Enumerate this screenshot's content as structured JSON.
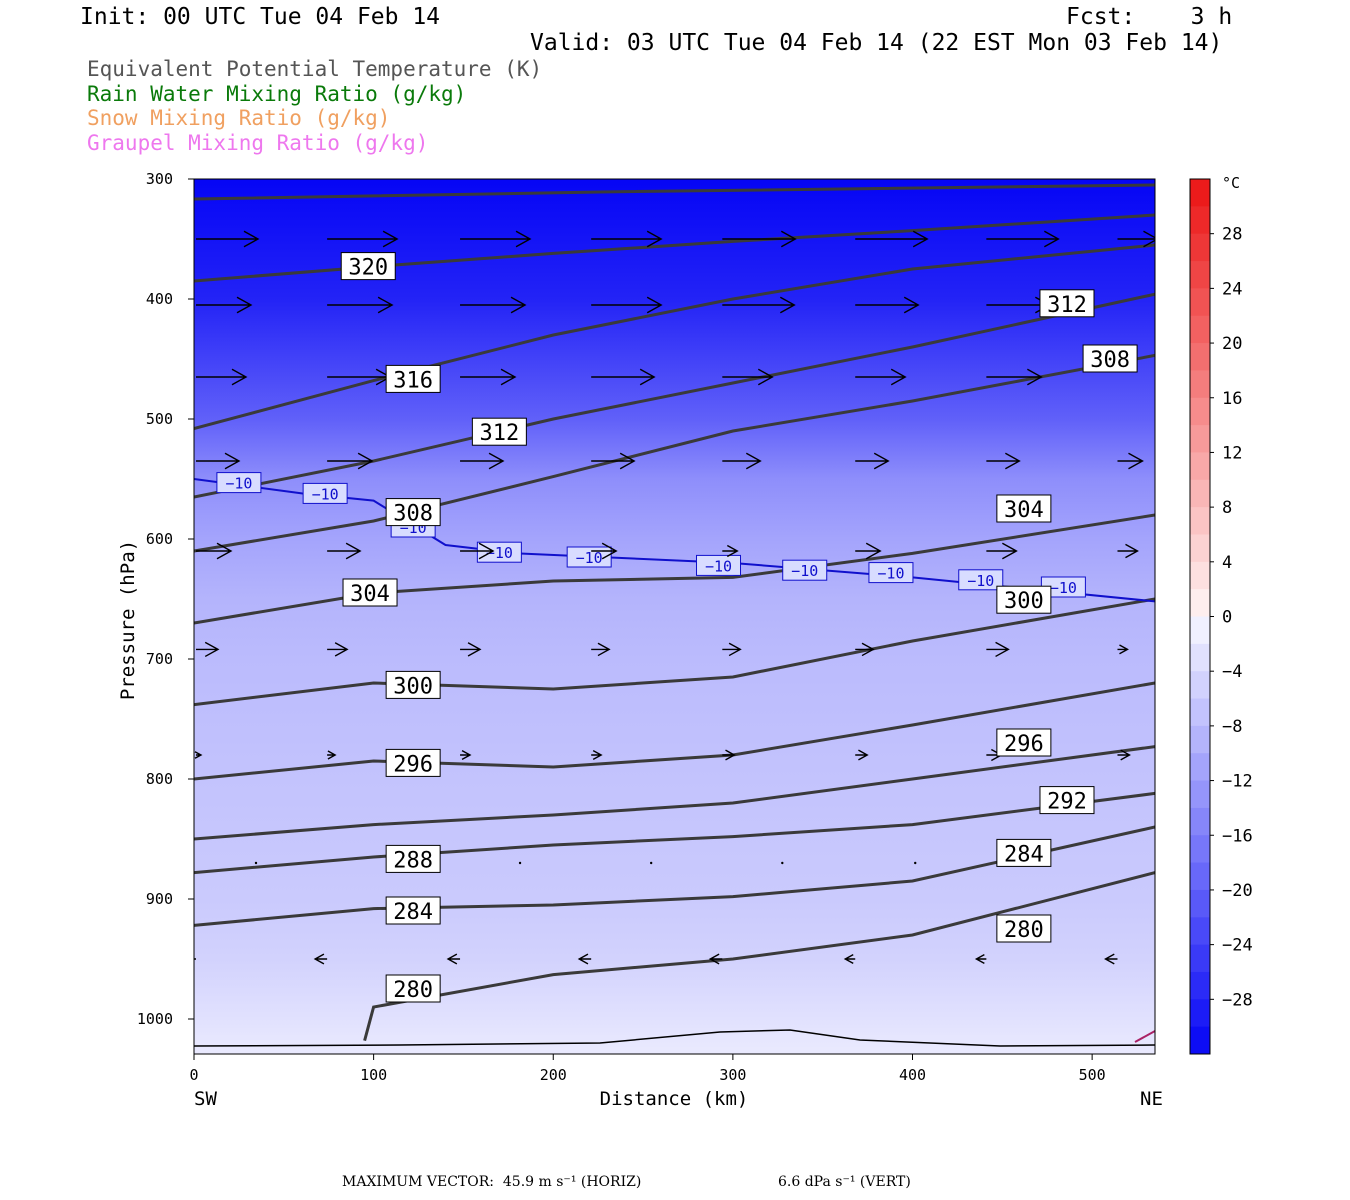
{
  "header": {
    "init": "Init: 00 UTC Tue 04 Feb 14",
    "fcst": "Fcst:    3 h",
    "valid": "Valid: 03 UTC Tue 04 Feb 14 (22 EST Mon 03 Feb 14)"
  },
  "fields": [
    {
      "label": "Equivalent Potential Temperature (K)",
      "color": "#555555"
    },
    {
      "label": "Rain Water Mixing Ratio (g/kg)",
      "color": "#0a7a0a"
    },
    {
      "label": "Snow Mixing Ratio (g/kg)",
      "color": "#f0a060"
    },
    {
      "label": "Graupel Mixing Ratio (g/kg)",
      "color": "#ee77ee"
    }
  ],
  "footer": {
    "max_vector_label": "MAXIMUM VECTOR:",
    "horiz": "45.9 m s⁻¹ (HORIZ)",
    "vert": "6.6 dPa s⁻¹ (VERT)"
  },
  "chart_data": {
    "type": "heatmap",
    "xlabel": "Distance (km)",
    "ylabel": "Pressure (hPa)",
    "xlim": [
      0,
      535
    ],
    "ylim": [
      1025,
      300
    ],
    "x_ticks": [
      0,
      100,
      200,
      300,
      400,
      500
    ],
    "y_ticks": [
      300,
      400,
      500,
      600,
      700,
      800,
      900,
      1000
    ],
    "x_left_label": "SW",
    "x_right_label": "NE",
    "colorbar": {
      "unit": "°C",
      "tick_labels": [
        28,
        24,
        20,
        16,
        12,
        8,
        4,
        0,
        -4,
        -8,
        -12,
        -16,
        -20,
        -24,
        -28
      ],
      "range": [
        -32,
        32
      ],
      "step": 2
    },
    "temperature_fill_levels": [
      {
        "p": 300,
        "t": -32
      },
      {
        "p": 350,
        "t": -30
      },
      {
        "p": 400,
        "t": -28
      },
      {
        "p": 450,
        "t": -24
      },
      {
        "p": 500,
        "t": -20
      },
      {
        "p": 550,
        "t": -14
      },
      {
        "p": 600,
        "t": -11
      },
      {
        "p": 650,
        "t": -9
      },
      {
        "p": 700,
        "t": -8
      },
      {
        "p": 800,
        "t": -7
      },
      {
        "p": 900,
        "t": -6
      },
      {
        "p": 950,
        "t": -5
      },
      {
        "p": 1000,
        "t": -3
      },
      {
        "p": 1025,
        "t": -2
      }
    ],
    "theta_e_contours": [
      {
        "label": "320",
        "points": [
          [
            0,
            385
          ],
          [
            100,
            373
          ],
          [
            200,
            362
          ],
          [
            300,
            352
          ],
          [
            400,
            343
          ],
          [
            535,
            330
          ]
        ]
      },
      {
        "label": "316",
        "points": [
          [
            0,
            508
          ],
          [
            100,
            468
          ],
          [
            200,
            430
          ],
          [
            300,
            400
          ],
          [
            400,
            375
          ],
          [
            535,
            355
          ]
        ]
      },
      {
        "label": "312",
        "points": [
          [
            0,
            565
          ],
          [
            100,
            535
          ],
          [
            200,
            500
          ],
          [
            300,
            470
          ],
          [
            400,
            440
          ],
          [
            535,
            396
          ]
        ]
      },
      {
        "label": "308",
        "points": [
          [
            0,
            610
          ],
          [
            100,
            585
          ],
          [
            200,
            548
          ],
          [
            300,
            510
          ],
          [
            400,
            485
          ],
          [
            535,
            447
          ]
        ]
      },
      {
        "label": "304",
        "points": [
          [
            0,
            670
          ],
          [
            100,
            645
          ],
          [
            200,
            635
          ],
          [
            300,
            632
          ],
          [
            400,
            612
          ],
          [
            535,
            580
          ]
        ]
      },
      {
        "label": "300",
        "points": [
          [
            0,
            738
          ],
          [
            100,
            720
          ],
          [
            200,
            725
          ],
          [
            300,
            715
          ],
          [
            400,
            685
          ],
          [
            535,
            650
          ]
        ]
      },
      {
        "label": "296",
        "points": [
          [
            0,
            800
          ],
          [
            100,
            785
          ],
          [
            200,
            790
          ],
          [
            300,
            780
          ],
          [
            400,
            755
          ],
          [
            535,
            720
          ]
        ]
      },
      {
        "label": "292",
        "points": [
          [
            0,
            850
          ],
          [
            100,
            838
          ],
          [
            200,
            830
          ],
          [
            300,
            820
          ],
          [
            400,
            800
          ],
          [
            535,
            773
          ]
        ]
      },
      {
        "label": "288",
        "points": [
          [
            0,
            878
          ],
          [
            100,
            865
          ],
          [
            200,
            855
          ],
          [
            300,
            848
          ],
          [
            400,
            838
          ],
          [
            535,
            812
          ]
        ]
      },
      {
        "label": "284",
        "points": [
          [
            0,
            922
          ],
          [
            100,
            908
          ],
          [
            200,
            905
          ],
          [
            300,
            898
          ],
          [
            400,
            885
          ],
          [
            535,
            840
          ]
        ]
      },
      {
        "label": "280",
        "points": [
          [
            95,
            1018
          ],
          [
            100,
            990
          ],
          [
            200,
            963
          ],
          [
            300,
            950
          ],
          [
            400,
            930
          ],
          [
            535,
            878
          ]
        ]
      }
    ],
    "theta_e_labels": [
      {
        "label": "320",
        "x": 97,
        "p": 373
      },
      {
        "label": "312",
        "x": 486,
        "p": 404
      },
      {
        "label": "308",
        "x": 510,
        "p": 450
      },
      {
        "label": "316",
        "x": 122,
        "p": 467
      },
      {
        "label": "312",
        "x": 170,
        "p": 511
      },
      {
        "label": "308",
        "x": 122,
        "p": 578
      },
      {
        "label": "304",
        "x": 462,
        "p": 575
      },
      {
        "label": "304",
        "x": 98,
        "p": 645
      },
      {
        "label": "300",
        "x": 462,
        "p": 651
      },
      {
        "label": "300",
        "x": 122,
        "p": 722
      },
      {
        "label": "296",
        "x": 462,
        "p": 770
      },
      {
        "label": "292",
        "x": 486,
        "p": 818
      },
      {
        "label": "296",
        "x": 122,
        "p": 787
      },
      {
        "label": "288",
        "x": 122,
        "p": 867
      },
      {
        "label": "284",
        "x": 462,
        "p": 862
      },
      {
        "label": "284",
        "x": 122,
        "p": 910
      },
      {
        "label": "280",
        "x": 462,
        "p": 925
      },
      {
        "label": "280",
        "x": 122,
        "p": 975
      }
    ],
    "isotherm_minus10": {
      "label": "−10",
      "points": [
        [
          0,
          550
        ],
        [
          60,
          562
        ],
        [
          100,
          568
        ],
        [
          140,
          605
        ],
        [
          180,
          612
        ],
        [
          300,
          620
        ],
        [
          400,
          632
        ],
        [
          535,
          652
        ]
      ],
      "label_positions": [
        [
          25,
          553
        ],
        [
          73,
          562
        ],
        [
          122,
          590
        ],
        [
          170,
          611
        ],
        [
          220,
          615
        ],
        [
          292,
          622
        ],
        [
          340,
          626
        ],
        [
          388,
          628
        ],
        [
          438,
          634
        ],
        [
          484,
          640
        ]
      ]
    },
    "wind_vectors": [
      {
        "p": 350,
        "rows": [
          [
            0,
            62
          ],
          [
            73,
            70
          ],
          [
            147,
            70
          ],
          [
            220,
            70
          ],
          [
            293,
            73
          ],
          [
            367,
            72
          ],
          [
            440,
            72
          ],
          [
            513,
            40
          ]
        ]
      },
      {
        "p": 405,
        "rows": [
          [
            0,
            55
          ],
          [
            73,
            65
          ],
          [
            147,
            65
          ],
          [
            220,
            70
          ],
          [
            293,
            72
          ],
          [
            367,
            63
          ],
          [
            440,
            63
          ],
          [
            513,
            0
          ]
        ]
      },
      {
        "p": 465,
        "rows": [
          [
            0,
            50
          ],
          [
            73,
            63
          ],
          [
            147,
            55
          ],
          [
            220,
            63
          ],
          [
            293,
            50
          ],
          [
            367,
            50
          ],
          [
            440,
            55
          ],
          [
            513,
            0
          ]
        ]
      },
      {
        "p": 535,
        "rows": [
          [
            0,
            43
          ],
          [
            73,
            45
          ],
          [
            147,
            43
          ],
          [
            220,
            43
          ],
          [
            293,
            38
          ],
          [
            367,
            33
          ],
          [
            440,
            33
          ],
          [
            513,
            25
          ]
        ]
      },
      {
        "p": 610,
        "rows": [
          [
            0,
            35
          ],
          [
            73,
            33
          ],
          [
            147,
            33
          ],
          [
            220,
            25
          ],
          [
            293,
            15
          ],
          [
            367,
            25
          ],
          [
            440,
            30
          ],
          [
            513,
            20
          ]
        ]
      },
      {
        "p": 692,
        "rows": [
          [
            0,
            22
          ],
          [
            73,
            20
          ],
          [
            147,
            20
          ],
          [
            220,
            18
          ],
          [
            293,
            18
          ],
          [
            367,
            18
          ],
          [
            440,
            22
          ],
          [
            513,
            10
          ]
        ]
      },
      {
        "p": 780,
        "rows": [
          [
            0,
            5
          ],
          [
            73,
            8
          ],
          [
            147,
            10
          ],
          [
            220,
            10
          ],
          [
            293,
            12
          ],
          [
            367,
            12
          ],
          [
            440,
            15
          ],
          [
            513,
            12
          ]
        ]
      },
      {
        "p": 870,
        "rows": [
          [
            0,
            1
          ],
          [
            73,
            1
          ],
          [
            147,
            1
          ],
          [
            220,
            1
          ],
          [
            293,
            1
          ],
          [
            367,
            1
          ],
          [
            440,
            1
          ],
          [
            513,
            1
          ]
        ]
      },
      {
        "p": 950,
        "rows": [
          [
            0,
            -12
          ],
          [
            73,
            -12
          ],
          [
            147,
            -12
          ],
          [
            220,
            -12
          ],
          [
            293,
            -12
          ],
          [
            367,
            -10
          ],
          [
            440,
            -10
          ],
          [
            513,
            -12
          ]
        ]
      }
    ]
  }
}
